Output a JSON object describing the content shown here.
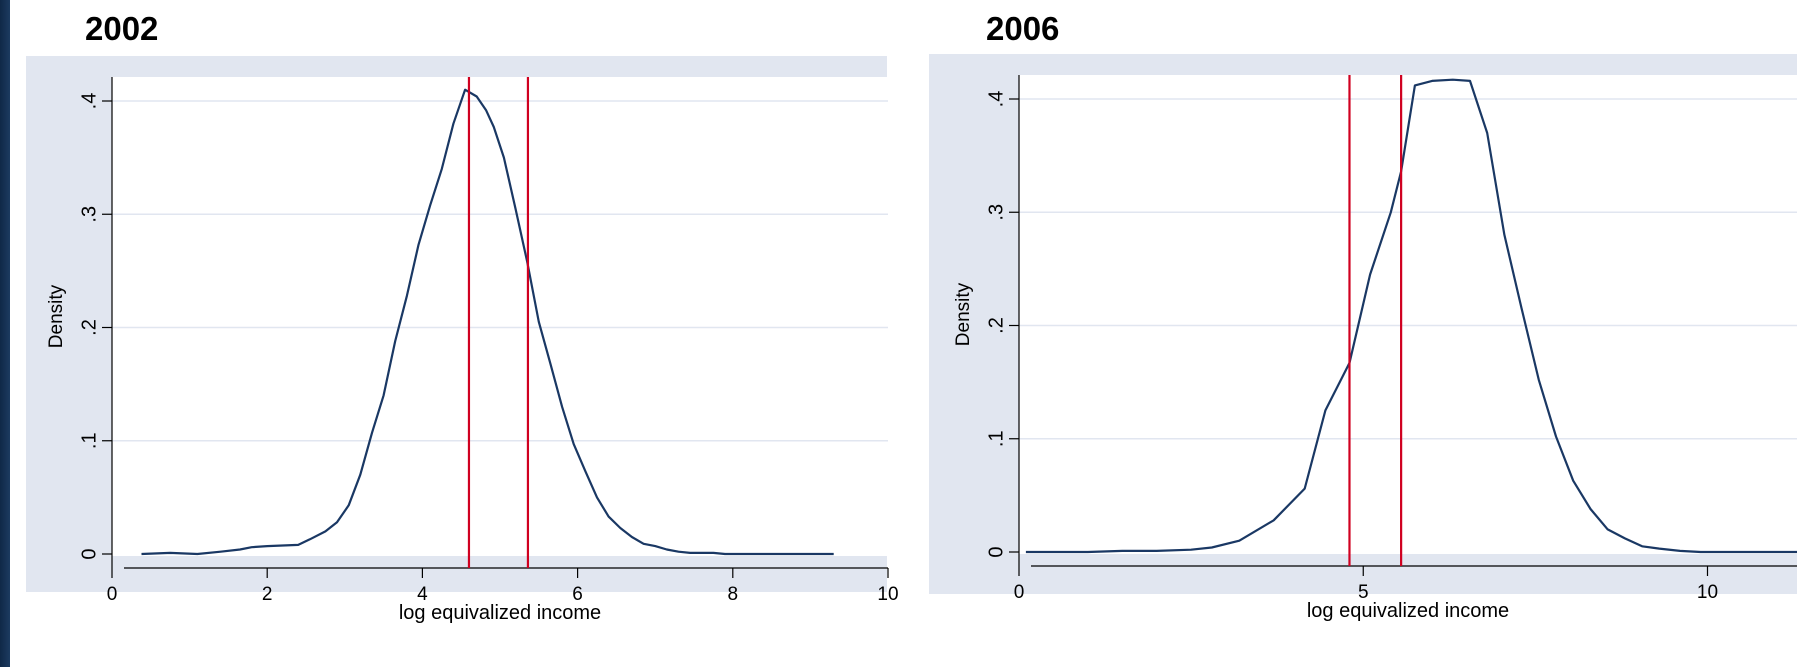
{
  "chart_data": [
    {
      "type": "line",
      "title": "2002",
      "xlabel": "log equivalized income",
      "ylabel": "Density",
      "xlim": [
        0,
        10
      ],
      "ylim": [
        0,
        0.4
      ],
      "xticks": [
        0,
        2,
        4,
        6,
        8,
        10
      ],
      "xtick_labels": [
        "0",
        "2",
        "4",
        "6",
        "8",
        "10"
      ],
      "yticks": [
        0,
        0.1,
        0.2,
        0.3,
        0.4
      ],
      "ytick_labels": [
        "0",
        ".1",
        ".2",
        ".3",
        ".4"
      ],
      "grid": true,
      "vlines": [
        4.6,
        5.36
      ],
      "series": [
        {
          "x": [
            0.38,
            0.75,
            1.1,
            1.4,
            1.65,
            1.8,
            2.0,
            2.4,
            2.55,
            2.75,
            2.9,
            3.05,
            3.2,
            3.35,
            3.5,
            3.65,
            3.8,
            3.95,
            4.1,
            4.25,
            4.4,
            4.55,
            4.7,
            4.82,
            4.92,
            5.05,
            5.2,
            5.35,
            5.5,
            5.65,
            5.8,
            5.95,
            6.1,
            6.25,
            6.4,
            6.55,
            6.7,
            6.85,
            7.0,
            7.15,
            7.3,
            7.45,
            7.6,
            7.75,
            7.9,
            8.05,
            8.2,
            8.4,
            8.7,
            9.0,
            9.3
          ],
          "y": [
            0.0,
            0.001,
            0.0,
            0.002,
            0.004,
            0.006,
            0.007,
            0.008,
            0.013,
            0.02,
            0.028,
            0.043,
            0.07,
            0.107,
            0.14,
            0.188,
            0.228,
            0.273,
            0.308,
            0.34,
            0.38,
            0.41,
            0.404,
            0.392,
            0.377,
            0.35,
            0.305,
            0.258,
            0.205,
            0.168,
            0.13,
            0.097,
            0.073,
            0.05,
            0.033,
            0.023,
            0.015,
            0.009,
            0.007,
            0.004,
            0.002,
            0.001,
            0.001,
            0.001,
            0.0,
            0.0,
            0.0,
            0.0,
            0.0,
            0.0,
            0.0
          ]
        }
      ]
    },
    {
      "type": "line",
      "title": "2006",
      "xlabel": "log equivalized income",
      "ylabel": "Density",
      "xlim": [
        0,
        11.3
      ],
      "ylim": [
        0,
        0.4
      ],
      "xticks": [
        0,
        5,
        10
      ],
      "xtick_labels": [
        "0",
        "5",
        "10"
      ],
      "yticks": [
        0,
        0.1,
        0.2,
        0.3,
        0.4
      ],
      "ytick_labels": [
        "0",
        ".1",
        ".2",
        ".3",
        ".4"
      ],
      "grid": true,
      "vlines": [
        4.8,
        5.55
      ],
      "series": [
        {
          "x": [
            0.1,
            0.5,
            1.0,
            1.5,
            2.0,
            2.5,
            2.8,
            3.2,
            3.7,
            4.15,
            4.45,
            4.8,
            5.1,
            5.4,
            5.55,
            5.75,
            6.0,
            6.3,
            6.55,
            6.8,
            7.05,
            7.3,
            7.55,
            7.8,
            8.05,
            8.3,
            8.55,
            8.8,
            9.05,
            9.3,
            9.6,
            9.9,
            10.3,
            10.7,
            11.1,
            11.3
          ],
          "y": [
            0.0,
            0.0,
            0.0,
            0.001,
            0.001,
            0.002,
            0.004,
            0.01,
            0.028,
            0.056,
            0.125,
            0.167,
            0.245,
            0.3,
            0.336,
            0.412,
            0.416,
            0.417,
            0.416,
            0.37,
            0.28,
            0.215,
            0.152,
            0.102,
            0.063,
            0.038,
            0.02,
            0.012,
            0.005,
            0.003,
            0.001,
            0.0,
            0.0,
            0.0,
            0.0,
            0.0
          ]
        }
      ]
    }
  ],
  "colors": {
    "outer_region": "#e1e6f0",
    "plot_area": "#ffffff",
    "gridline": "#e1e6f0",
    "density_line": "#1a3864",
    "reference_line": "#d00020",
    "text": "#000000"
  }
}
